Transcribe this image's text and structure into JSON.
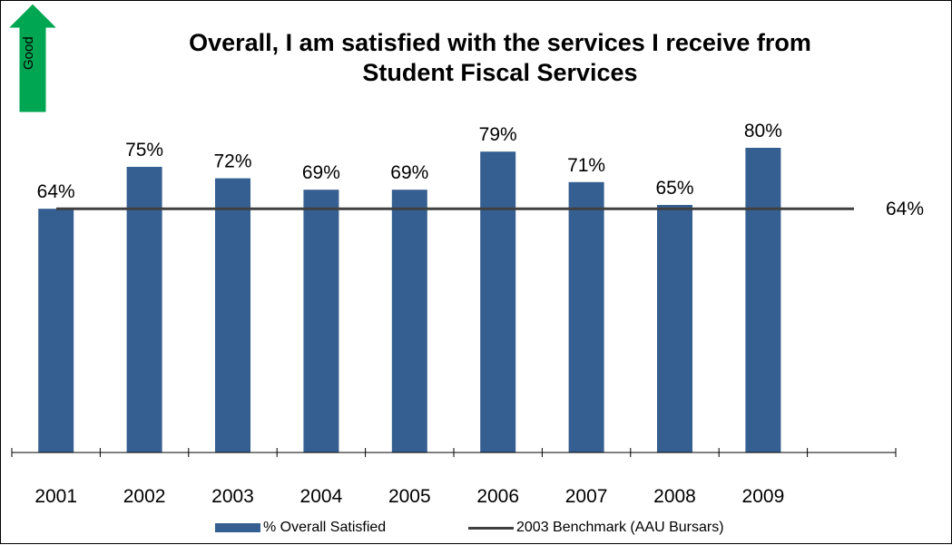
{
  "badge": {
    "label": "Good",
    "color": "#00a651"
  },
  "chart_data": {
    "type": "bar",
    "title": "Overall, I am satisfied with the services I receive from Student Fiscal Services",
    "title_lines": [
      "Overall, I am satisfied with the services I receive from",
      "Student Fiscal Services"
    ],
    "categories": [
      "2001",
      "2002",
      "2003",
      "2004",
      "2005",
      "2006",
      "2007",
      "2008",
      "2009"
    ],
    "series": [
      {
        "name": "% Overall Satisfied",
        "type": "bar",
        "color": "#365f91",
        "values": [
          64,
          75,
          72,
          69,
          69,
          79,
          71,
          65,
          80
        ],
        "labels": [
          "64%",
          "75%",
          "72%",
          "69%",
          "69%",
          "79%",
          "71%",
          "65%",
          "80%"
        ]
      },
      {
        "name": "2003 Benchmark (AAU Bursars)",
        "type": "line",
        "color": "#404040",
        "value": 64,
        "label": "64%"
      }
    ],
    "ylim": [
      0,
      100
    ],
    "xlabel": "",
    "ylabel": "",
    "grid": false,
    "legend": "bottom"
  }
}
